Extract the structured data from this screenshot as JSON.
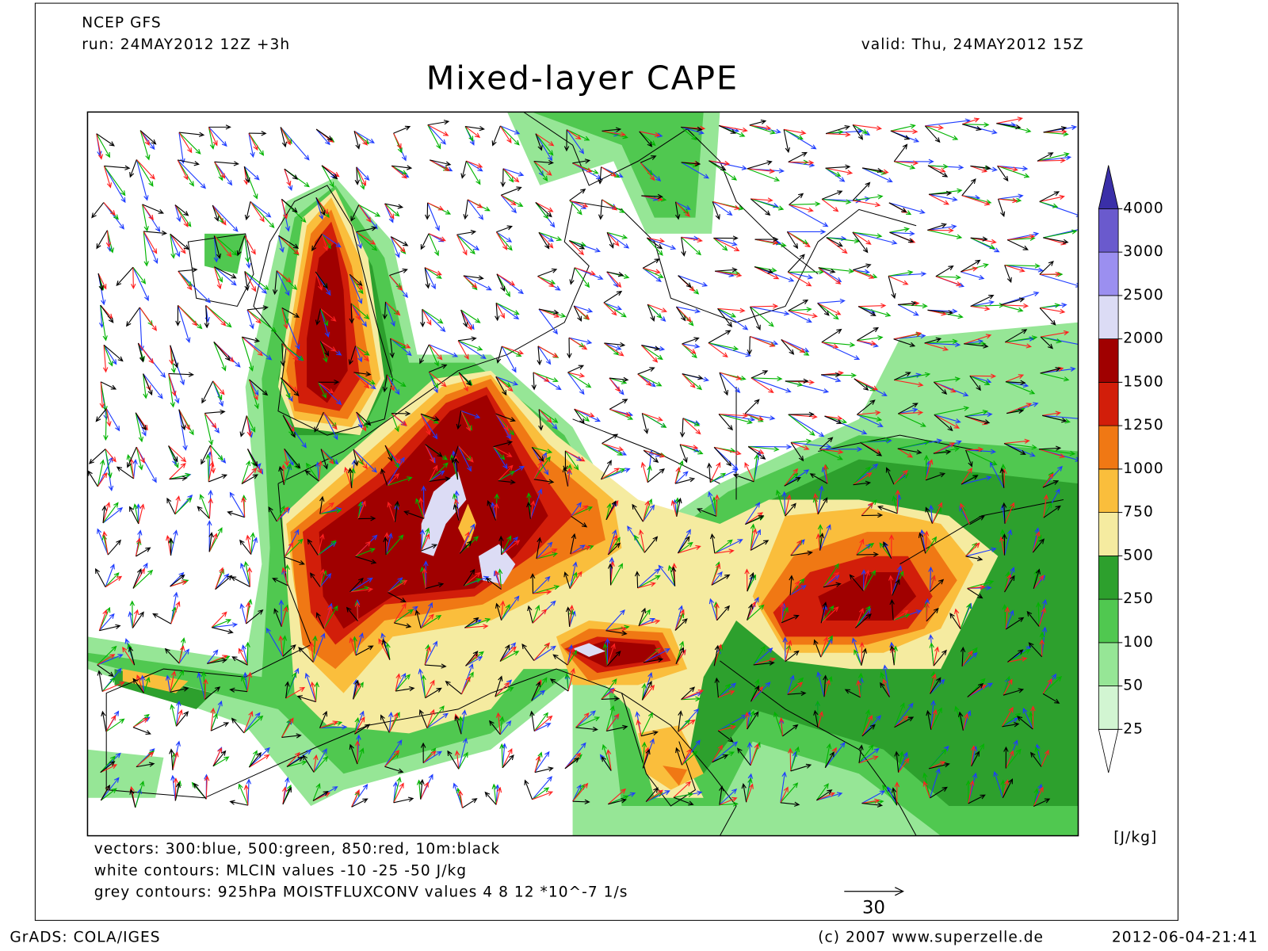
{
  "header": {
    "source": "NCEP GFS",
    "run": "run: 24MAY2012 12Z +3h",
    "valid": "valid: Thu, 24MAY2012 15Z",
    "title": "Mixed-layer CAPE"
  },
  "colorbar": {
    "levels": [
      25,
      50,
      100,
      250,
      500,
      750,
      1000,
      1250,
      1500,
      2000,
      2500,
      3000,
      4000
    ],
    "colors": [
      "#ffffff",
      "#d2f5d2",
      "#96e696",
      "#50c850",
      "#2da02d",
      "#f5eba0",
      "#fabe3c",
      "#f07814",
      "#d21e0a",
      "#a00000",
      "#dcdcf5",
      "#9b8ff0",
      "#6a5acd",
      "#3a2fa8"
    ],
    "unit": "[J/kg]"
  },
  "legend_notes": [
    "vectors: 300:blue, 500:green, 850:red, 10m:black",
    "white contours: MLCIN values -10 -25 -50 J/kg",
    "grey contours: 925hPa MOISTFLUXCONV values 4 8 12 *10^-7 1/s"
  ],
  "reference_vector": 30,
  "footer": {
    "software": "GrADS: COLA/IGES",
    "copyright": "(c) 2007 www.superzelle.de",
    "timestamp": "2012-06-04-21:41"
  }
}
